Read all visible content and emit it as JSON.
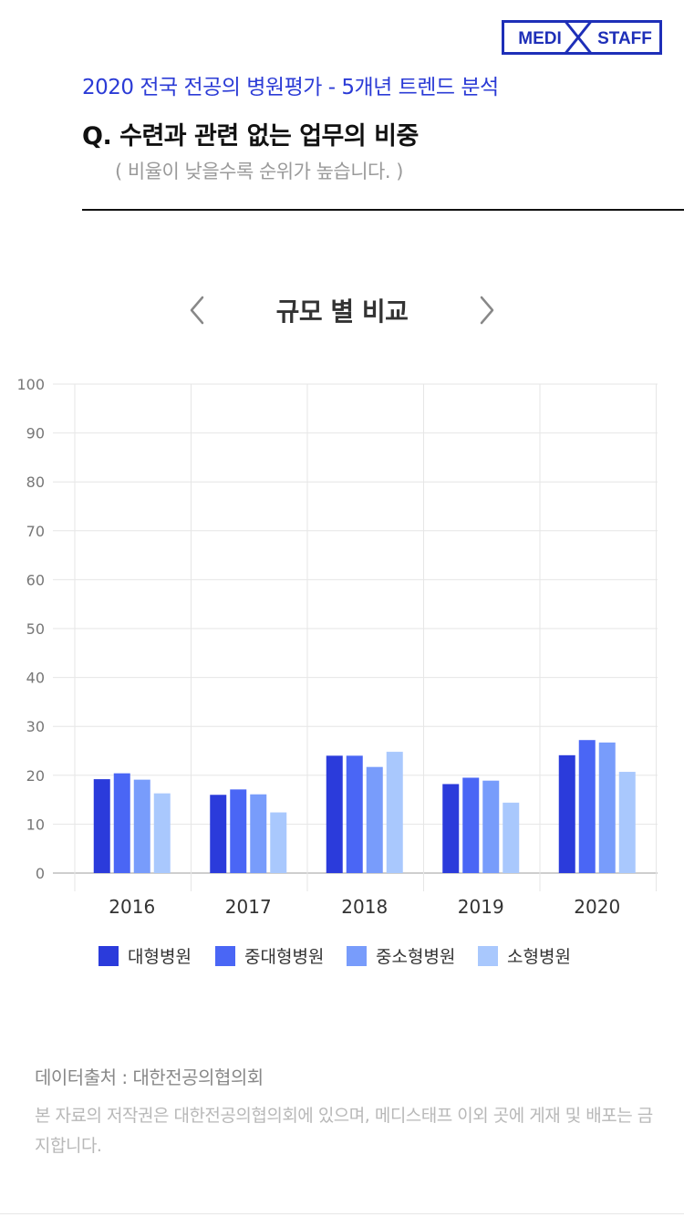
{
  "logo": {
    "left_text": "MEDI",
    "right_text": "STAFF",
    "color": "#1e2fb8"
  },
  "header": {
    "subtitle": "2020 전국 전공의 병원평가 - 5개년 트렌드 분석",
    "question": "Q. 수련과 관련 없는 업무의 비중",
    "note": "( 비율이 낮을수록 순위가 높습니다. )"
  },
  "nav": {
    "title": "규모 별 비교",
    "prev_icon": "chevron-left-icon",
    "next_icon": "chevron-right-icon"
  },
  "chart_data": {
    "type": "bar",
    "title": "",
    "xlabel": "",
    "ylabel": "",
    "ylim": [
      0,
      100
    ],
    "yticks": [
      0,
      10,
      20,
      30,
      40,
      50,
      60,
      70,
      80,
      90,
      100
    ],
    "grid": true,
    "legend_position": "bottom",
    "categories": [
      "2016",
      "2017",
      "2018",
      "2019",
      "2020"
    ],
    "series": [
      {
        "name": "대형병원",
        "color": "#2b3bdb",
        "values": [
          19.2,
          16.0,
          24.0,
          18.2,
          24.1
        ]
      },
      {
        "name": "중대형병원",
        "color": "#4a66f5",
        "values": [
          20.4,
          17.1,
          24.0,
          19.5,
          27.2
        ]
      },
      {
        "name": "중소형병원",
        "color": "#789cfb",
        "values": [
          19.1,
          16.1,
          21.7,
          18.9,
          26.7
        ]
      },
      {
        "name": "소형병원",
        "color": "#a9c8fd",
        "values": [
          16.3,
          12.4,
          24.8,
          14.4,
          20.7
        ]
      }
    ]
  },
  "footer": {
    "source": "데이터출처 : 대한전공의협의회",
    "copyright": "본 자료의 저작권은 대한전공의협의회에 있으며, 메디스태프 이외 곳에 게재 및 배포는 금지합니다."
  }
}
